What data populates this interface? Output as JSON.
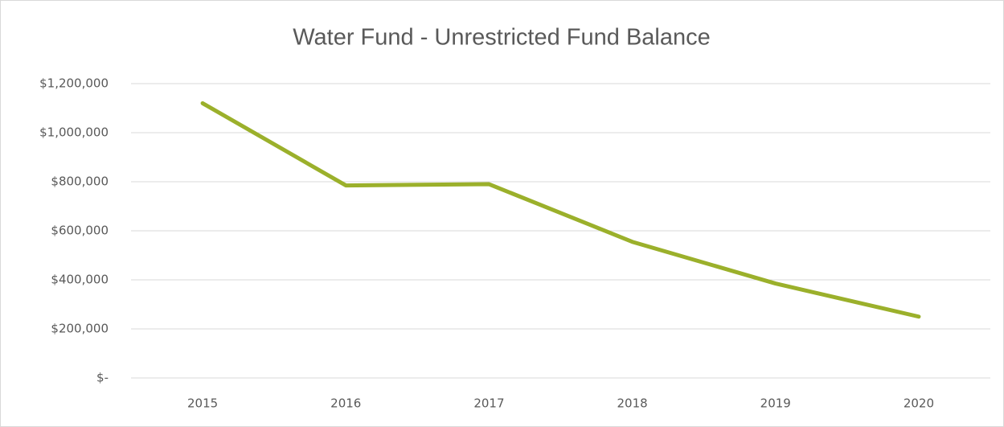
{
  "chart_data": {
    "type": "line",
    "title": "Water Fund - Unrestricted Fund Balance",
    "categories": [
      "2015",
      "2016",
      "2017",
      "2018",
      "2019",
      "2020"
    ],
    "series": [
      {
        "name": "Unrestricted Fund Balance",
        "color": "#9bb02b",
        "values": [
          1120000,
          785000,
          790000,
          555000,
          385000,
          250000
        ]
      }
    ],
    "ylim": [
      0,
      1200000
    ],
    "yticks": [
      {
        "value": 0,
        "label": "$-"
      },
      {
        "value": 200000,
        "label": "$200,000"
      },
      {
        "value": 400000,
        "label": "$400,000"
      },
      {
        "value": 600000,
        "label": "$600,000"
      },
      {
        "value": 800000,
        "label": "$800,000"
      },
      {
        "value": 1000000,
        "label": "$1,000,000"
      },
      {
        "value": 1200000,
        "label": "$1,200,000"
      }
    ],
    "grid": true
  }
}
